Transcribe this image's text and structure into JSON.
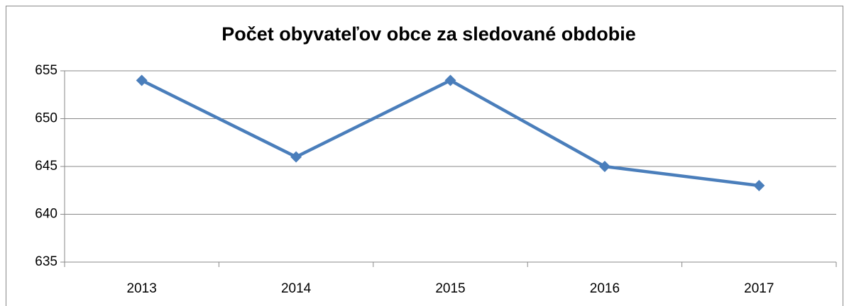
{
  "chart_data": {
    "type": "line",
    "title": "Počet obyvateľov obce za sledované obdobie",
    "categories": [
      "2013",
      "2014",
      "2015",
      "2016",
      "2017"
    ],
    "values": [
      654,
      646,
      654,
      645,
      643
    ],
    "color": "#4a7ebb",
    "ylim": [
      635,
      655
    ],
    "yticks": [
      635,
      640,
      645,
      650,
      655
    ],
    "grid": true
  }
}
